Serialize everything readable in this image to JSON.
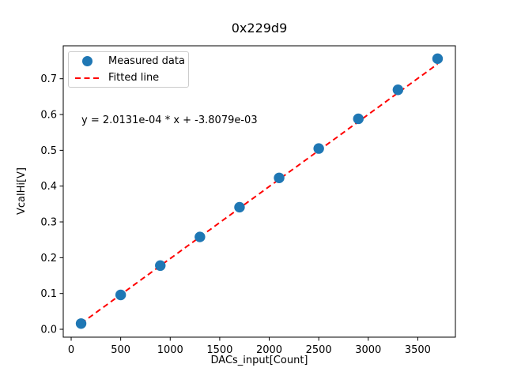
{
  "figure": {
    "background": "#ffffff",
    "text_color": "#000000"
  },
  "chart_data": {
    "type": "scatter",
    "title": "0x229d9",
    "xlabel": "DACs_input[Count]",
    "ylabel": "VcalHi[V]",
    "annotation": "y = 2.0131e-04 * x + -3.8079e-03",
    "grid": false,
    "legend_position": "upper left",
    "xlim": [
      -80,
      3880
    ],
    "ylim": [
      -0.022,
      0.792
    ],
    "xticks": {
      "values": [
        0,
        500,
        1000,
        1500,
        2000,
        2500,
        3000,
        3500
      ],
      "labels": [
        "0",
        "500",
        "1000",
        "1500",
        "2000",
        "2500",
        "3000",
        "3500"
      ]
    },
    "yticks": {
      "values": [
        0.0,
        0.1,
        0.2,
        0.3,
        0.4,
        0.5,
        0.6,
        0.7
      ],
      "labels": [
        "0.0",
        "0.1",
        "0.2",
        "0.3",
        "0.4",
        "0.5",
        "0.6",
        "0.7"
      ]
    },
    "series": [
      {
        "name": "Measured data",
        "type": "scatter",
        "marker": "circle",
        "color": "#1f77b4",
        "x": [
          100,
          500,
          900,
          1300,
          1700,
          2100,
          2500,
          2900,
          3300,
          3700
        ],
        "y": [
          0.016,
          0.096,
          0.178,
          0.258,
          0.341,
          0.423,
          0.505,
          0.588,
          0.669,
          0.756
        ]
      },
      {
        "name": "Fitted line",
        "type": "line",
        "linestyle": "dashed",
        "color": "#ff0000",
        "slope": 0.00020131,
        "intercept": -0.0038079,
        "x_start": 100,
        "x_end": 3700
      }
    ],
    "legend": {
      "entries": [
        {
          "label": "Measured data",
          "marker": "circle",
          "color": "#1f77b4"
        },
        {
          "label": "Fitted line",
          "marker": "dashed-line",
          "color": "#ff0000"
        }
      ]
    }
  }
}
